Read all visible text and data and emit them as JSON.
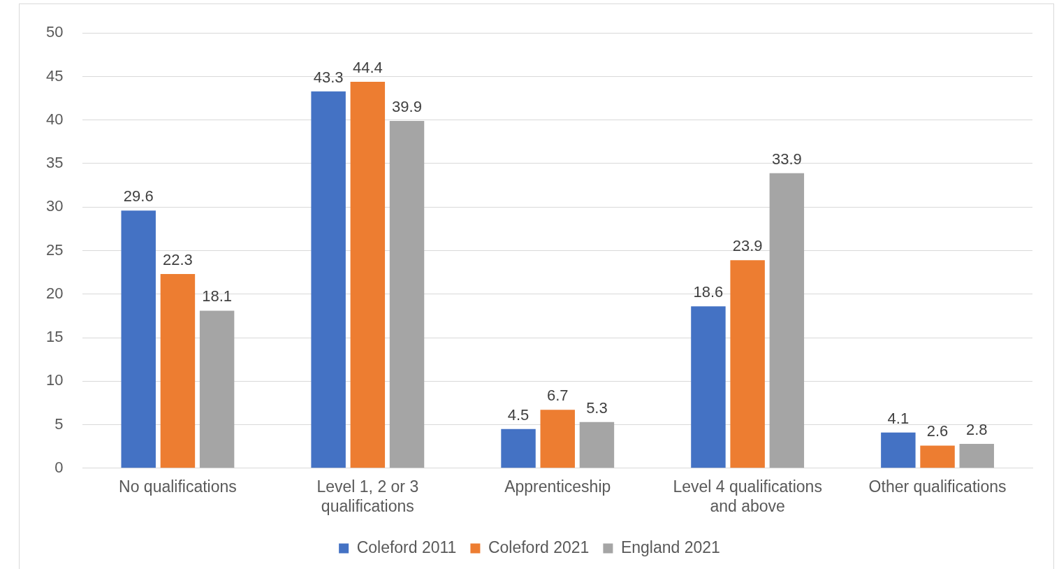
{
  "chart_data": {
    "type": "bar",
    "categories": [
      "No qualifications",
      "Level 1, 2 or 3 qualifications",
      "Apprenticeship",
      "Level 4 qualifications and above",
      "Other qualifications"
    ],
    "series": [
      {
        "name": "Coleford 2011",
        "color": "#4472c4",
        "values": [
          29.6,
          43.3,
          4.5,
          18.6,
          4.1
        ]
      },
      {
        "name": "Coleford 2021",
        "color": "#ed7d31",
        "values": [
          22.3,
          44.4,
          6.7,
          23.9,
          2.6
        ]
      },
      {
        "name": "England 2021",
        "color": "#a5a5a5",
        "values": [
          18.1,
          39.9,
          5.3,
          33.9,
          2.8
        ]
      }
    ],
    "ylim": [
      0,
      50
    ],
    "yticks": [
      0,
      5,
      10,
      15,
      20,
      25,
      30,
      35,
      40,
      45,
      50
    ],
    "grid": "y",
    "legend": "bottom",
    "data_labels": true
  }
}
